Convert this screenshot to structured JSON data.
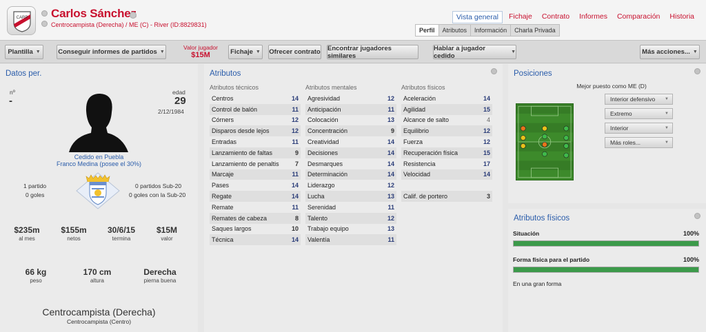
{
  "player": {
    "name": "Carlos Sánchez",
    "subtitle": "Centrocampista (Derecha) / ME (C) - River (ID:8829831)"
  },
  "nav": {
    "tabs": [
      "Vista general",
      "Fichaje",
      "Contrato",
      "Informes",
      "Comparación",
      "Historia"
    ],
    "subtabs": [
      "Perfil",
      "Atributos",
      "Información",
      "Charla Privada"
    ]
  },
  "toolbar": {
    "plantilla": "Plantilla",
    "informes": "Conseguir informes de partidos",
    "valor_label": "Valor jugador",
    "valor_value": "$15M",
    "fichaje": "Fichaje",
    "ofrecer": "Ofrecer contrato",
    "similares": "Encontrar jugadores similares",
    "hablar": "Hablar a jugador cedido",
    "mas": "Más acciones..."
  },
  "datos": {
    "title": "Datos per.",
    "num_label": "nº",
    "num_value": "-",
    "edad_label": "edad",
    "edad_value": "29",
    "birth": "2/12/1984",
    "loan_line1": "Cedido en Puebla",
    "loan_line2": "Franco Medina (posee el 30%)",
    "caps_left_1": "1 partido",
    "caps_left_2": "0 goles",
    "caps_right_1": "0 partidos Sub-20",
    "caps_right_2": "0 goles con la Sub-20",
    "contract": [
      {
        "v": "$235m",
        "k": "al mes"
      },
      {
        "v": "$155m",
        "k": "netos"
      },
      {
        "v": "30/6/15",
        "k": "termina"
      },
      {
        "v": "$15M",
        "k": "valor"
      }
    ],
    "physical": [
      {
        "v": "66 kg",
        "k": "peso"
      },
      {
        "v": "170 cm",
        "k": "altura"
      },
      {
        "v": "Derecha",
        "k": "pierna buena"
      }
    ],
    "position_main": "Centrocampista (Derecha)",
    "position_sub": "Centrocampista (Centro)"
  },
  "atributos": {
    "title": "Atributos",
    "tecnicos_head": "Atributos técnicos",
    "mentales_head": "Atributos mentales",
    "fisicos_head": "Atributos físicos",
    "tecnicos": [
      {
        "n": "Centros",
        "v": "14"
      },
      {
        "n": "Control de balón",
        "v": "11"
      },
      {
        "n": "Córners",
        "v": "12"
      },
      {
        "n": "Disparos desde lejos",
        "v": "12"
      },
      {
        "n": "Entradas",
        "v": "11"
      },
      {
        "n": "Lanzamiento de faltas",
        "v": "9"
      },
      {
        "n": "Lanzamiento de penaltis",
        "v": "7"
      },
      {
        "n": "Marcaje",
        "v": "11"
      },
      {
        "n": "Pases",
        "v": "14"
      },
      {
        "n": "Regate",
        "v": "14"
      },
      {
        "n": "Remate",
        "v": "11"
      },
      {
        "n": "Remates de cabeza",
        "v": "8"
      },
      {
        "n": "Saques largos",
        "v": "10"
      },
      {
        "n": "Técnica",
        "v": "14"
      }
    ],
    "mentales": [
      {
        "n": "Agresividad",
        "v": "12"
      },
      {
        "n": "Anticipación",
        "v": "11"
      },
      {
        "n": "Colocación",
        "v": "13"
      },
      {
        "n": "Concentración",
        "v": "9"
      },
      {
        "n": "Creatividad",
        "v": "14"
      },
      {
        "n": "Decisiones",
        "v": "14"
      },
      {
        "n": "Desmarques",
        "v": "14"
      },
      {
        "n": "Determinación",
        "v": "14"
      },
      {
        "n": "Liderazgo",
        "v": "12"
      },
      {
        "n": "Lucha",
        "v": "13"
      },
      {
        "n": "Serenidad",
        "v": "11"
      },
      {
        "n": "Talento",
        "v": "12"
      },
      {
        "n": "Trabajo equipo",
        "v": "13"
      },
      {
        "n": "Valentía",
        "v": "11"
      }
    ],
    "fisicos": [
      {
        "n": "Aceleración",
        "v": "14"
      },
      {
        "n": "Agilidad",
        "v": "15"
      },
      {
        "n": "Alcance de salto",
        "v": "4"
      },
      {
        "n": "Equilibrio",
        "v": "12"
      },
      {
        "n": "Fuerza",
        "v": "12"
      },
      {
        "n": "Recuperación física",
        "v": "15"
      },
      {
        "n": "Resistencia",
        "v": "17"
      },
      {
        "n": "Velocidad",
        "v": "14"
      }
    ],
    "portero": {
      "n": "Calif. de portero",
      "v": "3"
    }
  },
  "posiciones": {
    "title": "Posiciones",
    "mejor": "Mejor puesto como ME (D)",
    "roles": [
      "Interior defensivo",
      "Extremo",
      "Interior",
      "Más roles..."
    ],
    "dot_colors": {
      "natural": "#3fb94a",
      "accomplished": "#e8c21a",
      "unconvincing": "#e8741a",
      "empty": "#dcdcdc"
    }
  },
  "fisicos_panel": {
    "title": "Atributos físicos",
    "situacion_label": "Situación",
    "situacion_pct": "100%",
    "situacion_value": 1.0,
    "forma_label": "Forma física para el partido",
    "forma_pct": "100%",
    "forma_value": 1.0,
    "note": "En una gran forma"
  },
  "colors": {
    "accent_red": "#c8102e",
    "accent_blue": "#2a5caa",
    "bar_green": "#3c9a4a"
  }
}
